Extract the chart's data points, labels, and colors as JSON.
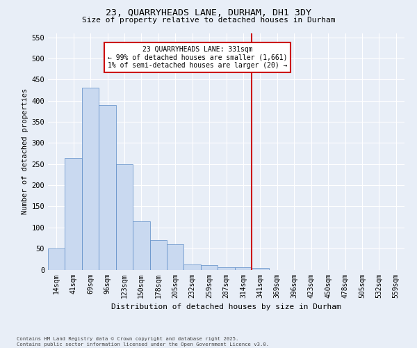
{
  "title_line1": "23, QUARRYHEADS LANE, DURHAM, DH1 3DY",
  "title_line2": "Size of property relative to detached houses in Durham",
  "xlabel": "Distribution of detached houses by size in Durham",
  "ylabel": "Number of detached properties",
  "categories": [
    "14sqm",
    "41sqm",
    "69sqm",
    "96sqm",
    "123sqm",
    "150sqm",
    "178sqm",
    "205sqm",
    "232sqm",
    "259sqm",
    "287sqm",
    "314sqm",
    "341sqm",
    "369sqm",
    "396sqm",
    "423sqm",
    "450sqm",
    "478sqm",
    "505sqm",
    "532sqm",
    "559sqm"
  ],
  "values": [
    50,
    265,
    430,
    390,
    250,
    115,
    70,
    60,
    12,
    10,
    6,
    5,
    4,
    0,
    0,
    0,
    0,
    0,
    0,
    0,
    0
  ],
  "bar_color": "#c9d9f0",
  "bar_edge_color": "#5a8ac6",
  "vline_x_index": 11.5,
  "vline_color": "#cc0000",
  "annotation_text": "23 QUARRYHEADS LANE: 331sqm\n← 99% of detached houses are smaller (1,661)\n1% of semi-detached houses are larger (20) →",
  "annotation_box_color": "#cc0000",
  "ylim": [
    0,
    560
  ],
  "yticks": [
    0,
    50,
    100,
    150,
    200,
    250,
    300,
    350,
    400,
    450,
    500,
    550
  ],
  "background_color": "#e8eef7",
  "grid_color": "#ffffff",
  "footer_line1": "Contains HM Land Registry data © Crown copyright and database right 2025.",
  "footer_line2": "Contains public sector information licensed under the Open Government Licence v3.0.",
  "font_family": "DejaVu Sans Mono"
}
